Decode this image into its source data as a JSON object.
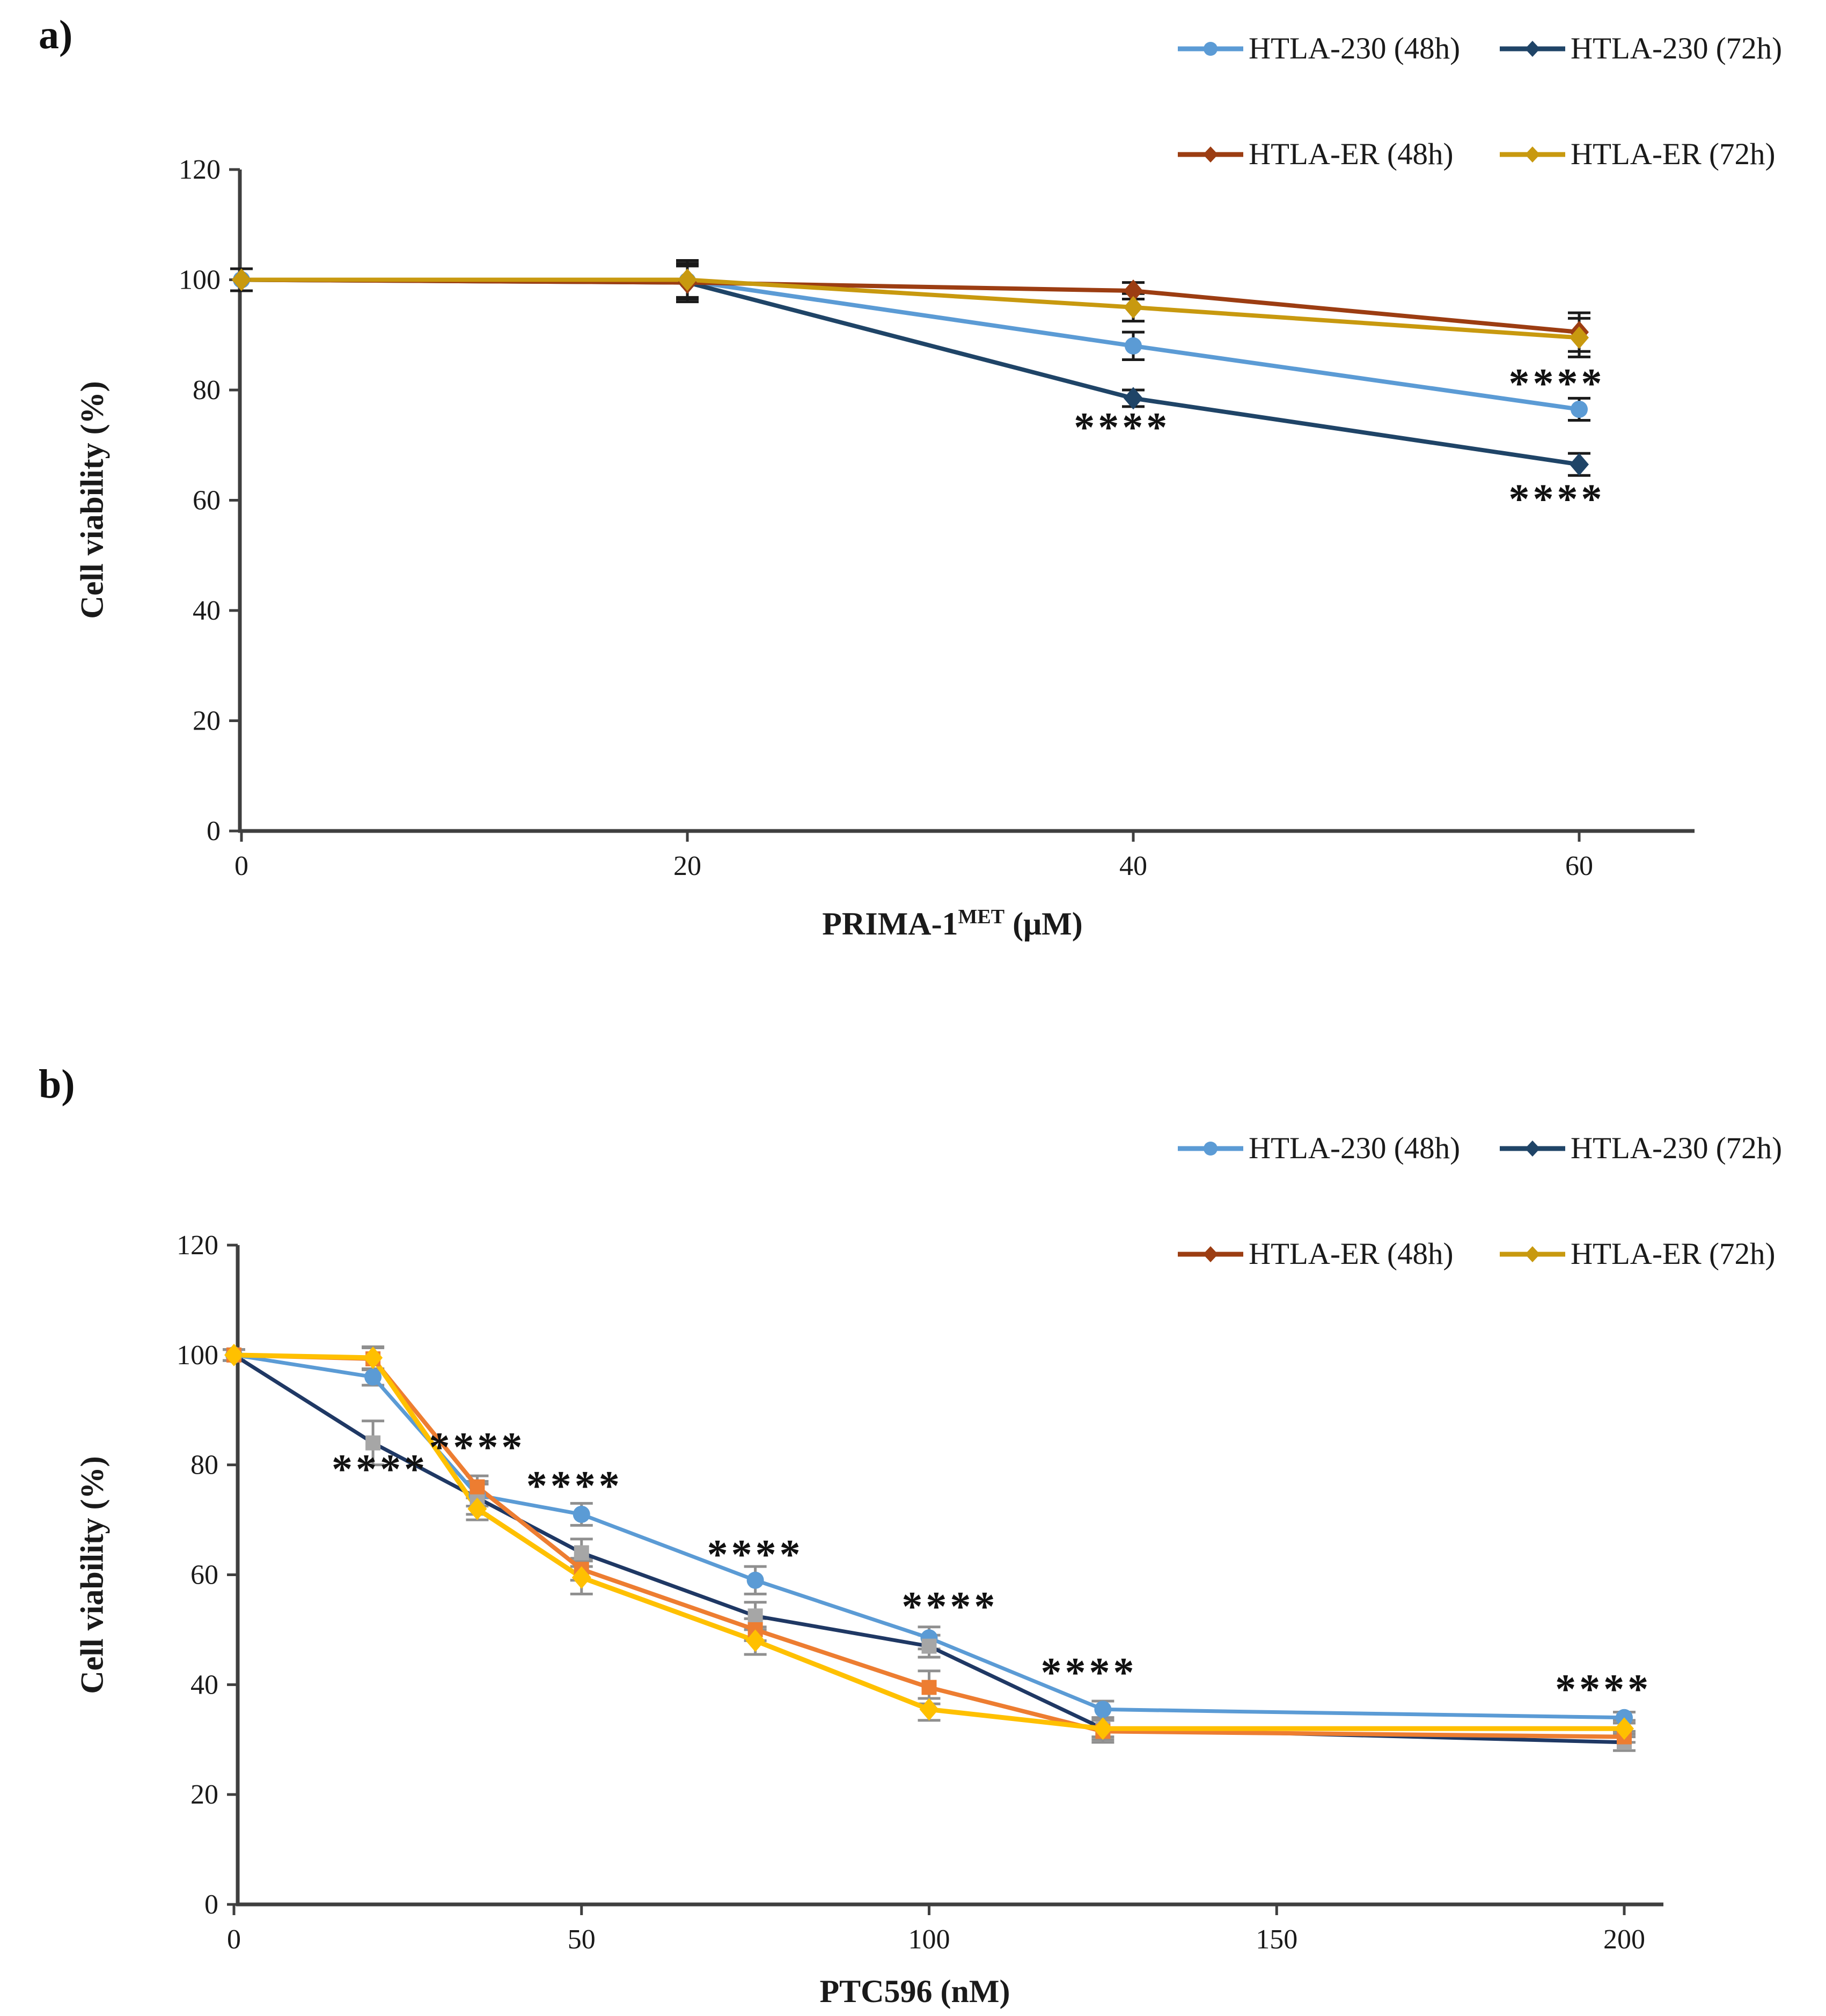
{
  "page": {
    "panel_a_label": "a)",
    "panel_b_label": "b)"
  },
  "legend": {
    "items": [
      {
        "label": "HTLA-230 (48h)",
        "color": "#5B9BD5",
        "marker": "circle"
      },
      {
        "label": "HTLA-230 (72h)",
        "color": "#1F4467",
        "marker": "diamond"
      },
      {
        "label": "HTLA-ER (48h)",
        "color": "#9C3D12",
        "marker": "diamond"
      },
      {
        "label": "HTLA-ER (72h)",
        "color": "#C8990F",
        "marker": "diamond"
      }
    ]
  },
  "chart_data": [
    {
      "id": "a",
      "type": "line",
      "title": "",
      "ylabel": "Cell viability (%)",
      "xlabel": {
        "base": "PRIMA-1",
        "sup": "MET",
        "unit": "(μM)"
      },
      "x": [
        0,
        20,
        40,
        60
      ],
      "xticks": [
        0,
        20,
        40,
        60
      ],
      "yticks": [
        0,
        20,
        40,
        60,
        80,
        100,
        120
      ],
      "xlim": [
        0,
        65
      ],
      "ylim": [
        0,
        120
      ],
      "grid": false,
      "legend_position": "top-right",
      "error_color": "#1a1a1a",
      "series": [
        {
          "name": "HTLA-230 (48h)",
          "color": "#5B9BD5",
          "marker": "circle",
          "marker_color": "#5B9BD5",
          "values": [
            100,
            99.8,
            88,
            76.5
          ],
          "errors": [
            2,
            3,
            2.5,
            2
          ]
        },
        {
          "name": "HTLA-230 (72h)",
          "color": "#1F4467",
          "marker": "diamond",
          "marker_color": "#1F4467",
          "values": [
            100,
            99.5,
            78.5,
            66.5
          ],
          "errors": [
            2,
            3,
            1.5,
            2
          ]
        },
        {
          "name": "HTLA-ER (48h)",
          "color": "#9C3D12",
          "marker": "diamond",
          "marker_color": "#9C3D12",
          "values": [
            100,
            99.5,
            98,
            90.5
          ],
          "errors": [
            2,
            3.5,
            1.5,
            3.5
          ]
        },
        {
          "name": "HTLA-ER (72h)",
          "color": "#C8990F",
          "marker": "diamond",
          "marker_color": "#C8990F",
          "values": [
            100,
            100,
            95,
            89.5
          ],
          "errors": [
            2,
            3.5,
            2.5,
            3.5
          ]
        }
      ],
      "annotations": [
        {
          "text": "****",
          "x": 39.5,
          "y": 74
        },
        {
          "text": "****",
          "x": 59,
          "y": 82
        },
        {
          "text": "****",
          "x": 59,
          "y": 61
        }
      ]
    },
    {
      "id": "b",
      "type": "line",
      "title": "",
      "ylabel": "Cell viability (%)",
      "xlabel": {
        "base": "PTC596",
        "sup": "",
        "unit": "(nM)"
      },
      "x": [
        0,
        20,
        35,
        50,
        75,
        100,
        125,
        200
      ],
      "xticks": [
        0,
        50,
        100,
        150,
        200
      ],
      "yticks": [
        0,
        20,
        40,
        60,
        80,
        100,
        120
      ],
      "xlim": [
        0,
        206
      ],
      "ylim": [
        0,
        120
      ],
      "grid": false,
      "legend_position": "top-right",
      "error_color": "#8f8f8f",
      "series": [
        {
          "name": "HTLA-230 (48h)",
          "color": "#5B9BD5",
          "marker": "circle",
          "marker_color": "#5B9BD5",
          "values": [
            100,
            96,
            74.5,
            71,
            59,
            48.5,
            35.5,
            34
          ],
          "errors": [
            1,
            1.5,
            2,
            2,
            2.5,
            2,
            1.5,
            1
          ]
        },
        {
          "name": "HTLA-230 (72h)",
          "color": "#1F3864",
          "marker": "square",
          "marker_color": "#A6A6A6",
          "values": [
            100,
            84,
            74,
            64,
            52.5,
            47,
            32,
            29.5
          ],
          "errors": [
            1,
            4,
            3,
            2.5,
            2.5,
            2,
            1.5,
            1.5
          ]
        },
        {
          "name": "HTLA-ER (48h)",
          "color": "#ED7D31",
          "marker": "square",
          "marker_color": "#ED7D31",
          "values": [
            100,
            99.3,
            76,
            61,
            50,
            39.5,
            31.5,
            30.5
          ],
          "errors": [
            1,
            2,
            2,
            2,
            2,
            3,
            2,
            1
          ]
        },
        {
          "name": "HTLA-ER (72h)",
          "color": "#FFC000",
          "marker": "diamond",
          "marker_color": "#FFC000",
          "values": [
            100,
            99.5,
            72,
            59.5,
            48,
            35.5,
            32,
            32
          ],
          "errors": [
            1,
            2,
            2,
            3,
            2.5,
            2,
            2,
            1.5
          ]
        }
      ],
      "annotations": [
        {
          "text": "****",
          "x": 21,
          "y": 80
        },
        {
          "text": "****",
          "x": 35,
          "y": 84
        },
        {
          "text": "****",
          "x": 49,
          "y": 77
        },
        {
          "text": "****",
          "x": 75,
          "y": 64.5
        },
        {
          "text": "****",
          "x": 103,
          "y": 55
        },
        {
          "text": "****",
          "x": 123,
          "y": 43
        },
        {
          "text": "****",
          "x": 197,
          "y": 40
        }
      ]
    }
  ]
}
